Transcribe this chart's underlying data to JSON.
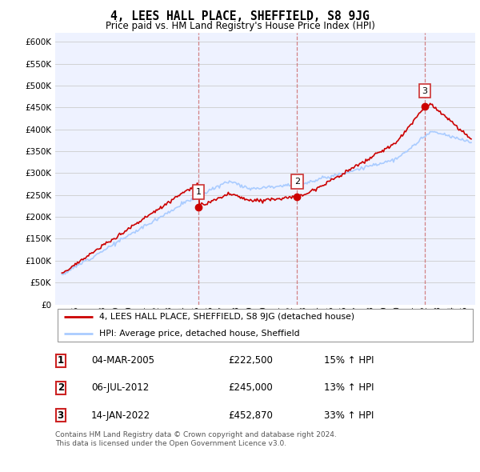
{
  "title": "4, LEES HALL PLACE, SHEFFIELD, S8 9JG",
  "subtitle": "Price paid vs. HM Land Registry's House Price Index (HPI)",
  "property_color": "#cc0000",
  "hpi_color": "#aaccff",
  "vline_color": "#dd6666",
  "sale_dates": [
    2005.17,
    2012.52,
    2022.04
  ],
  "sale_prices": [
    222500,
    245000,
    452870
  ],
  "sale_labels": [
    "1",
    "2",
    "3"
  ],
  "legend_property": "4, LEES HALL PLACE, SHEFFIELD, S8 9JG (detached house)",
  "legend_hpi": "HPI: Average price, detached house, Sheffield",
  "table_data": [
    [
      "1",
      "04-MAR-2005",
      "£222,500",
      "15% ↑ HPI"
    ],
    [
      "2",
      "06-JUL-2012",
      "£245,000",
      "13% ↑ HPI"
    ],
    [
      "3",
      "14-JAN-2022",
      "£452,870",
      "33% ↑ HPI"
    ]
  ],
  "footnote": "Contains HM Land Registry data © Crown copyright and database right 2024.\nThis data is licensed under the Open Government Licence v3.0.",
  "background_color": "#eef2ff",
  "grid_color": "#cccccc"
}
